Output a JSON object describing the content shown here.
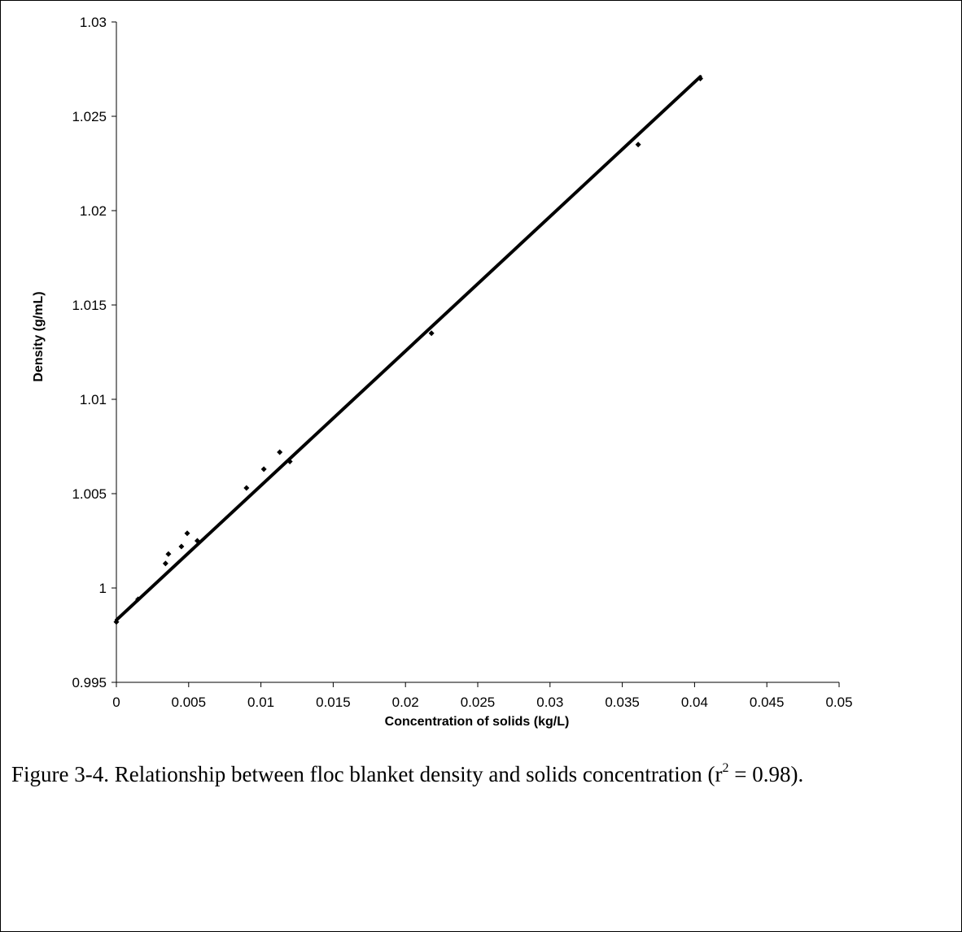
{
  "chart_data": {
    "type": "scatter",
    "xlabel": "Concentration of solids (kg/L)",
    "ylabel": "Density (g/mL)",
    "xlim": [
      0,
      0.05
    ],
    "ylim": [
      0.995,
      1.03
    ],
    "x_ticks": [
      "0",
      "0.005",
      "0.01",
      "0.015",
      "0.02",
      "0.025",
      "0.03",
      "0.035",
      "0.04",
      "0.045",
      "0.05"
    ],
    "y_ticks": [
      "0.995",
      "1",
      "1.005",
      "1.01",
      "1.015",
      "1.02",
      "1.025",
      "1.03"
    ],
    "grid": false,
    "legend": "none",
    "series": [
      {
        "type": "scatter",
        "marker": "diamond",
        "color": "#000000",
        "x": [
          0.0,
          0.0015,
          0.0034,
          0.0036,
          0.0045,
          0.0049,
          0.0056,
          0.009,
          0.0102,
          0.0113,
          0.012,
          0.0218,
          0.0361,
          0.0404
        ],
        "y": [
          0.9982,
          0.9994,
          1.0013,
          1.0018,
          1.0022,
          1.0029,
          1.0025,
          1.0053,
          1.0063,
          1.0072,
          1.0067,
          1.0135,
          1.0235,
          1.027
        ]
      },
      {
        "type": "line",
        "role": "linear fit",
        "color": "#000000",
        "x": [
          0.0,
          0.0404
        ],
        "y": [
          0.9983,
          1.0271
        ]
      }
    ]
  },
  "caption": {
    "text": "Figure 3-4. Relationship between floc blanket density and solids concentration  (r",
    "superscript": "2",
    "text_after": " = 0.98)."
  }
}
